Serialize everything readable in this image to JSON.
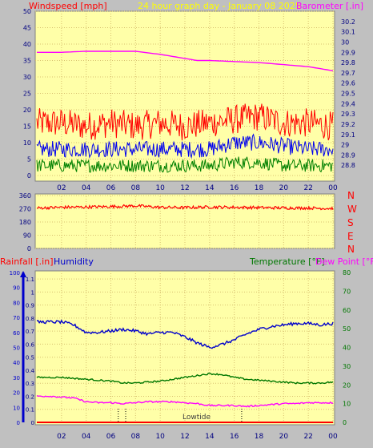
{
  "header": {
    "windspeed_label": "Windspeed [mph]",
    "title": "24 hour graph day - January 08 2025",
    "barometer_label": "Barometer [.in]"
  },
  "colors": {
    "panel_bg": "#ffffa8",
    "outer_bg": "#c0c0c0",
    "gust": "#ff0000",
    "average": "#0000ee",
    "lull": "#008000",
    "barometer": "#ff00ff",
    "direction": "#ff0000",
    "humidity": "#0000cc",
    "temperature": "#007700",
    "dewpoint": "#ff00ff",
    "rain": "#ff0000",
    "title": "#ffff00"
  },
  "time_ticks": [
    "02",
    "04",
    "06",
    "08",
    "10",
    "12",
    "14",
    "16",
    "18",
    "20",
    "22",
    "00"
  ],
  "direction_labels": [
    "N",
    "W",
    "S",
    "E",
    "N"
  ],
  "footer": {
    "rainfall_label": "Rainfall [.in]",
    "humidity_label": "Humidity",
    "temperature_label": "Temperature [°F]",
    "dewpoint_label": "Dew Point [°F]",
    "tide_label": "Lowtide"
  },
  "chart_data": [
    {
      "type": "line",
      "name": "wind-and-barometer",
      "x_unit": "hour",
      "x_range": [
        0,
        24
      ],
      "y_left_ticks": [
        0,
        5,
        10,
        15,
        20,
        25,
        30,
        35,
        40,
        45,
        50
      ],
      "y_left_range": [
        0,
        50
      ],
      "y_right_ticks": [
        "28.8",
        "28.9",
        "29",
        "29.1",
        "29.2",
        "29.3",
        "29.4",
        "29.5",
        "29.6",
        "29.7",
        "29.8",
        "29.9",
        "30",
        "30.1",
        "30.2"
      ],
      "y_right_range": [
        28.7,
        30.3
      ],
      "series": [
        {
          "key": "barometer",
          "axis": "right",
          "x": [
            0,
            2,
            4,
            6,
            8,
            10,
            12,
            13,
            14,
            16,
            18,
            20,
            22,
            24
          ],
          "y": [
            29.9,
            29.9,
            29.91,
            29.91,
            29.91,
            29.88,
            29.84,
            29.82,
            29.82,
            29.81,
            29.8,
            29.78,
            29.76,
            29.72
          ]
        },
        {
          "key": "gust",
          "axis": "left",
          "x": [
            0,
            2,
            4,
            6,
            8,
            10,
            12,
            14,
            16,
            18,
            20,
            22,
            24
          ],
          "y": [
            16,
            16,
            15,
            16,
            15,
            16,
            15,
            16,
            17,
            18,
            16,
            16,
            15
          ],
          "spread": 4.5
        },
        {
          "key": "average",
          "axis": "left",
          "x": [
            0,
            2,
            4,
            6,
            8,
            10,
            12,
            14,
            16,
            18,
            20,
            22,
            24
          ],
          "y": [
            8,
            8,
            8,
            8,
            8,
            8,
            8,
            8,
            10,
            10,
            9,
            8,
            8
          ],
          "spread": 2.5
        },
        {
          "key": "lull",
          "axis": "left",
          "x": [
            0,
            2,
            4,
            6,
            8,
            10,
            12,
            14,
            16,
            18,
            20,
            22,
            24
          ],
          "y": [
            3,
            3,
            3,
            3,
            3,
            3,
            3,
            3,
            4,
            4,
            3,
            3,
            3
          ],
          "spread": 2
        }
      ]
    },
    {
      "type": "line",
      "name": "wind-direction",
      "x_unit": "hour",
      "x_range": [
        0,
        24
      ],
      "y_ticks": [
        0,
        90,
        180,
        270,
        360
      ],
      "y_range": [
        0,
        360
      ],
      "series": [
        {
          "key": "direction",
          "x": [
            0,
            2,
            4,
            6,
            8,
            10,
            12,
            14,
            16,
            18,
            20,
            22,
            24
          ],
          "y": [
            275,
            280,
            282,
            285,
            290,
            280,
            278,
            282,
            280,
            278,
            276,
            275,
            272
          ],
          "spread": 10
        }
      ]
    },
    {
      "type": "line",
      "name": "temperature-humidity-rain",
      "x_unit": "hour",
      "x_range": [
        0,
        24
      ],
      "y_humidity_ticks": [
        0,
        10,
        20,
        30,
        40,
        50,
        60,
        70,
        80,
        90,
        100
      ],
      "y_humidity_range": [
        0,
        100
      ],
      "y_rain_ticks": [
        "0",
        "0.1",
        "0.2",
        "0.3",
        "0.4",
        "0.5",
        "0.6",
        "0.7",
        "0.8",
        "0.9",
        "1",
        "1.1"
      ],
      "y_rain_range": [
        0,
        1.15
      ],
      "y_temp_ticks": [
        0,
        10,
        20,
        30,
        40,
        50,
        60,
        70,
        80
      ],
      "y_temp_range": [
        0,
        80
      ],
      "series": [
        {
          "key": "humidity",
          "axis": "humidity",
          "x": [
            0,
            1,
            2,
            3,
            4,
            5,
            6,
            7,
            8,
            9,
            10,
            11,
            12,
            13,
            14,
            15,
            16,
            17,
            18,
            19,
            20,
            21,
            22,
            23,
            24
          ],
          "y": [
            67,
            67,
            67,
            65,
            60,
            60,
            61,
            62,
            61,
            59,
            60,
            60,
            57,
            53,
            50,
            52,
            55,
            59,
            62,
            64,
            65,
            66,
            66,
            65,
            66
          ]
        },
        {
          "key": "temperature",
          "axis": "temp",
          "x": [
            0,
            1,
            2,
            3,
            4,
            5,
            6,
            7,
            8,
            9,
            10,
            11,
            12,
            13,
            14,
            15,
            16,
            17,
            18,
            19,
            20,
            21,
            22,
            23,
            24
          ],
          "y": [
            24,
            24,
            24,
            23.5,
            23,
            22.5,
            22,
            21,
            21,
            21.5,
            22,
            23,
            24,
            25,
            26,
            25.5,
            24,
            23,
            22.5,
            22,
            21.5,
            21,
            21,
            21,
            21.5
          ]
        },
        {
          "key": "dewpoint",
          "axis": "temp",
          "x": [
            0,
            1,
            2,
            3,
            4,
            5,
            6,
            7,
            8,
            9,
            10,
            11,
            12,
            13,
            14,
            15,
            16,
            17,
            18,
            19,
            20,
            21,
            22,
            23,
            24
          ],
          "y": [
            14,
            14,
            13.5,
            13,
            11,
            10.5,
            10.5,
            10,
            10.5,
            11,
            11,
            11,
            10.5,
            10,
            9,
            9,
            9,
            8.5,
            9,
            9.5,
            10,
            10,
            10.5,
            10.5,
            10.5
          ]
        },
        {
          "key": "rain",
          "axis": "rain",
          "x": [
            0,
            24
          ],
          "y": [
            0,
            0
          ]
        }
      ],
      "tide_markers_hour": [
        6.6,
        7.2,
        16.6
      ]
    }
  ]
}
